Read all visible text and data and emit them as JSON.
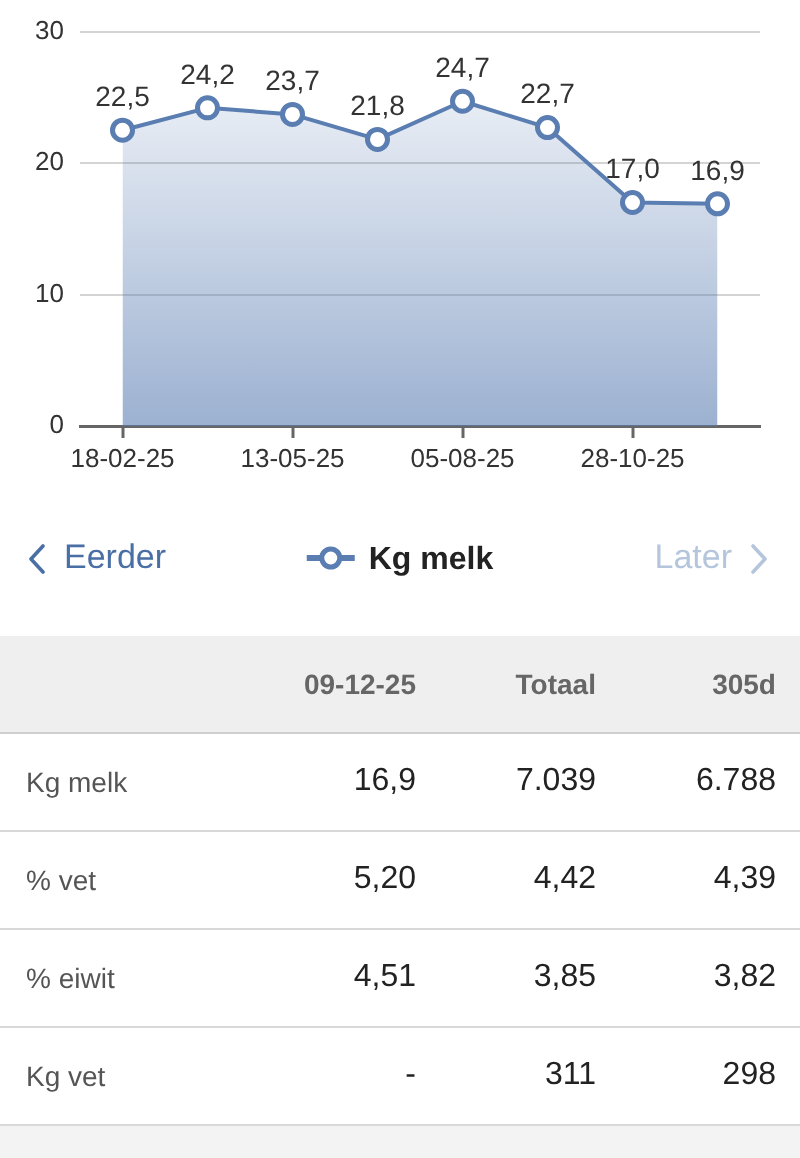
{
  "chart_data": [
    {
      "type": "area",
      "categories": [
        "18-02-25",
        null,
        "13-05-25",
        null,
        "05-08-25",
        null,
        "28-10-25",
        null
      ],
      "series": [
        {
          "name": "Kg melk",
          "color": "#5a7db2",
          "values": [
            22.5,
            24.2,
            23.7,
            21.8,
            24.7,
            22.7,
            17.0,
            16.9
          ],
          "value_labels": [
            "22,5",
            "24,2",
            "23,7",
            "21,8",
            "24,7",
            "22,7",
            "17,0",
            "16,9"
          ]
        }
      ],
      "ylim": [
        0,
        30
      ],
      "yticks": [
        0,
        10,
        20,
        30
      ],
      "grid": "y",
      "legend": "bottom",
      "marker": "circle",
      "annotations": [
        "Eerder",
        "Later"
      ]
    },
    {
      "type": "other",
      "categories": [
        "09-12-25",
        "Totaal",
        "305d"
      ],
      "y_categories": [
        "Kg melk",
        "% vet",
        "% eiwit",
        "Kg vet"
      ],
      "cell_labels": [
        [
          "16,9",
          "7.039",
          "6.788"
        ],
        [
          "5,20",
          "4,42",
          "4,39"
        ],
        [
          "4,51",
          "3,85",
          "3,82"
        ],
        [
          "-",
          "311",
          "298"
        ]
      ]
    }
  ]
}
